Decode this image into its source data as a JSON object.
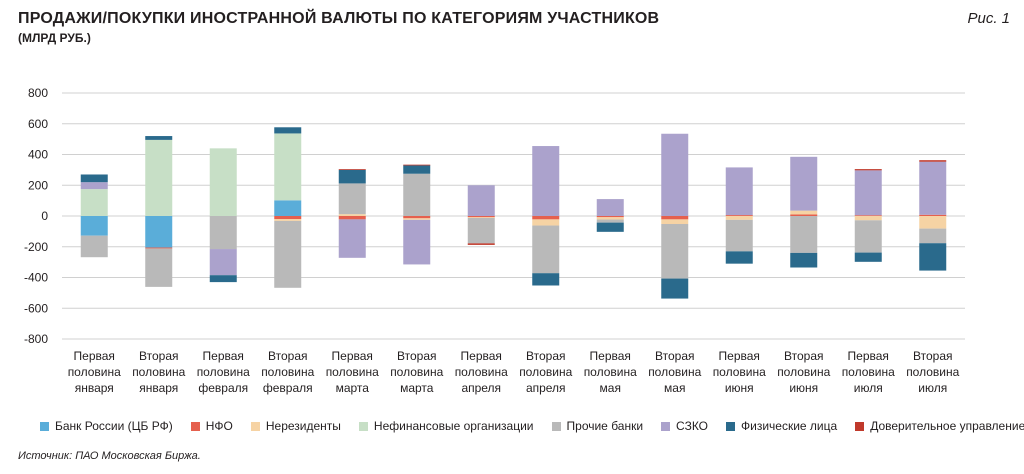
{
  "header": {
    "title": "ПРОДАЖИ/ПОКУПКИ ИНОСТРАННОЙ ВАЛЮТЫ ПО КАТЕГОРИЯМ УЧАСТНИКОВ",
    "subtitle": "(МЛРД РУБ.)",
    "figure_label": "Рис. 1"
  },
  "footer": {
    "source": "Источник: ПАО Московская Биржа."
  },
  "chart_data": {
    "type": "bar",
    "stacked": true,
    "ylim": [
      -800,
      800
    ],
    "yticks": [
      800,
      600,
      400,
      200,
      0,
      -200,
      -400,
      -600,
      -800
    ],
    "grid": true,
    "legend_position": "bottom",
    "categories": [
      [
        "Первая",
        "половина",
        "января"
      ],
      [
        "Вторая",
        "половина",
        "января"
      ],
      [
        "Первая",
        "половина",
        "февраля"
      ],
      [
        "Вторая",
        "половина",
        "февраля"
      ],
      [
        "Первая",
        "половина",
        "марта"
      ],
      [
        "Вторая",
        "половина",
        "марта"
      ],
      [
        "Первая",
        "половина",
        "апреля"
      ],
      [
        "Вторая",
        "половина",
        "апреля"
      ],
      [
        "Первая",
        "половина",
        "мая"
      ],
      [
        "Вторая",
        "половина",
        "мая"
      ],
      [
        "Первая",
        "половина",
        "июня"
      ],
      [
        "Вторая",
        "половина",
        "июня"
      ],
      [
        "Первая",
        "половина",
        "июля"
      ],
      [
        "Вторая",
        "половина",
        "июля"
      ]
    ],
    "series": [
      {
        "name": "Банк России (ЦБ РФ)",
        "color": "#5aadd9",
        "values": [
          -128,
          -205,
          0,
          102,
          0,
          0,
          0,
          0,
          0,
          0,
          0,
          0,
          0,
          0
        ]
      },
      {
        "name": "НФО",
        "color": "#e5604e",
        "values": [
          0,
          -6,
          0,
          -20,
          -22,
          -15,
          -8,
          -22,
          -8,
          -22,
          6,
          10,
          5,
          8
        ]
      },
      {
        "name": "Нерезиденты",
        "color": "#f6d3a4",
        "values": [
          0,
          0,
          0,
          -12,
          12,
          -10,
          -5,
          -40,
          -15,
          -30,
          -25,
          25,
          -28,
          -82
        ]
      },
      {
        "name": "Нефинансовые организации",
        "color": "#c7dfc6",
        "values": [
          175,
          495,
          440,
          435,
          0,
          0,
          0,
          0,
          0,
          0,
          0,
          0,
          0,
          0
        ]
      },
      {
        "name": "Прочие банки",
        "color": "#b9b9b9",
        "values": [
          -140,
          -250,
          -215,
          -435,
          200,
          275,
          -165,
          -310,
          -20,
          -355,
          -205,
          -240,
          -210,
          -95
        ]
      },
      {
        "name": "СЗКО",
        "color": "#aba2cc",
        "values": [
          45,
          0,
          -170,
          0,
          -250,
          -290,
          200,
          455,
          110,
          535,
          310,
          350,
          292,
          345
        ]
      },
      {
        "name": "Физические лица",
        "color": "#2a6a8c",
        "values": [
          50,
          25,
          -45,
          40,
          88,
          55,
          0,
          -80,
          -60,
          -130,
          -80,
          -95,
          -60,
          -178
        ]
      },
      {
        "name": "Доверительное управление",
        "color": "#c0392b",
        "values": [
          0,
          0,
          0,
          0,
          5,
          4,
          -10,
          0,
          0,
          0,
          0,
          0,
          8,
          10
        ]
      }
    ]
  }
}
